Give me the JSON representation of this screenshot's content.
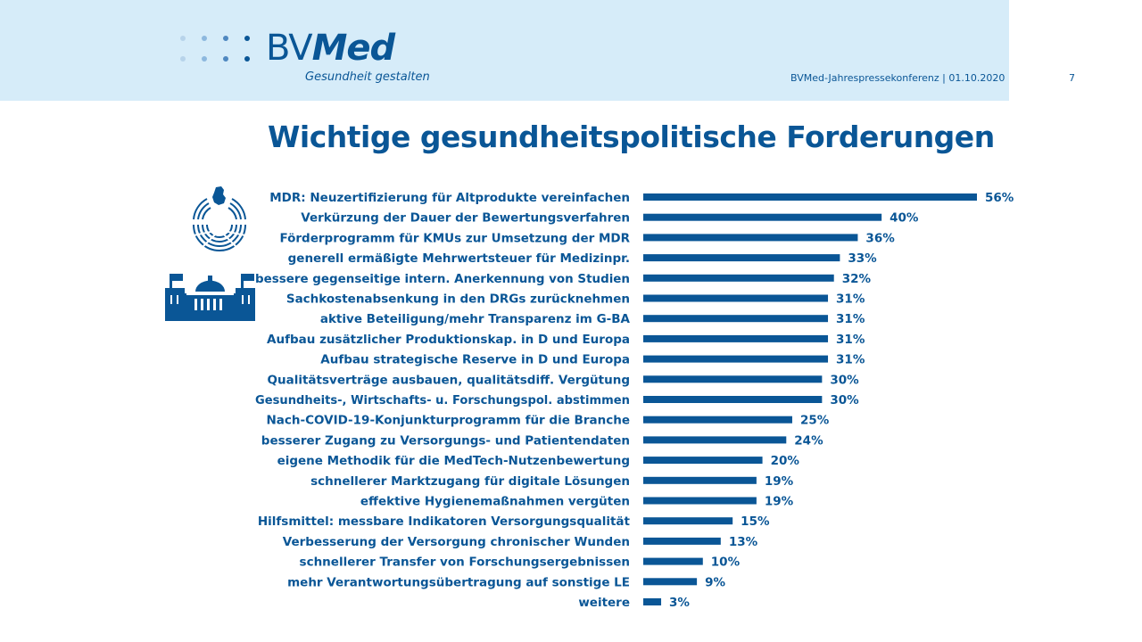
{
  "header": {
    "logo_text_regular": "BV",
    "logo_text_bold": "Med",
    "tagline": "Gesundheit gestalten",
    "conference": "BVMed-Jahrespressekonferenz | 01.10.2020",
    "page_number": "7"
  },
  "colors": {
    "brand": "#0a5696",
    "header_background": "#d6ecf9",
    "bar": "#0a5696"
  },
  "icons": [
    "bundestag-seating-icon",
    "reichstag-building-icon"
  ],
  "chart_data": {
    "type": "bar",
    "orientation": "horizontal",
    "title": "Wichtige gesundheitspolitische Forderungen",
    "xlabel": "",
    "ylabel": "",
    "xlim": [
      0,
      56
    ],
    "grid": false,
    "value_suffix": "%",
    "categories": [
      "MDR: Neuzertifizierung für Altprodukte vereinfachen",
      "Verkürzung der Dauer der Bewertungsverfahren",
      "Förderprogramm für KMUs zur Umsetzung der MDR",
      "generell ermäßigte Mehrwertsteuer für Medizinpr.",
      "bessere gegenseitige intern. Anerkennung von Studien",
      "Sachkostenabsenkung in den DRGs zurücknehmen",
      "aktive Beteiligung/mehr Transparenz im G-BA",
      "Aufbau zusätzlicher Produktionskap. in D und Europa",
      "Aufbau strategische Reserve in D und Europa",
      "Qualitätsverträge ausbauen, qualitätsdiff. Vergütung",
      "Gesundheits-, Wirtschafts- u. Forschungspol. abstimmen",
      "Nach-COVID-19-Konjunkturprogramm für die Branche",
      "besserer Zugang zu Versorgungs- und Patientendaten",
      "eigene Methodik für die MedTech-Nutzenbewertung",
      "schnellerer Marktzugang für digitale Lösungen",
      "effektive Hygienemaßnahmen vergüten",
      "Hilfsmittel: messbare Indikatoren Versorgungsqualität",
      "Verbesserung der Versorgung chronischer Wunden",
      "schnellerer Transfer von Forschungsergebnissen",
      "mehr Verantwortungsübertragung auf sonstige LE",
      "weitere"
    ],
    "values": [
      56,
      40,
      36,
      33,
      32,
      31,
      31,
      31,
      31,
      30,
      30,
      25,
      24,
      20,
      19,
      19,
      15,
      13,
      10,
      9,
      3
    ],
    "labels": [
      "56%",
      "40%",
      "36%",
      "33%",
      "32%",
      "31%",
      "31%",
      "31%",
      "31%",
      "30%",
      "30%",
      "25%",
      "24%",
      "20%",
      "19%",
      "19%",
      "15%",
      "13%",
      "10%",
      "9%",
      "3%"
    ]
  }
}
